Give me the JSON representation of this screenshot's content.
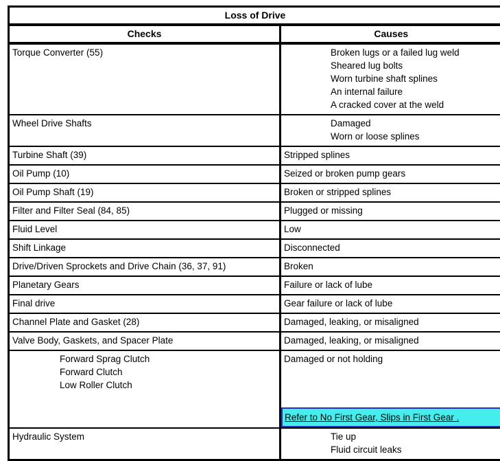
{
  "table": {
    "title": "Loss of Drive",
    "headers": [
      "Checks",
      "Causes"
    ],
    "link_colors": {
      "highlight": "#45eded",
      "border": "#2232c8"
    },
    "rows": [
      {
        "check": "Torque Converter (55)",
        "causes": [
          "Broken lugs or a failed lug weld",
          "Sheared lug bolts",
          "Worn turbine shaft splines",
          "An internal failure",
          "A cracked cover at the weld"
        ],
        "causes_indented": true
      },
      {
        "check": "Wheel Drive Shafts",
        "causes": [
          "Damaged",
          "Worn or loose splines"
        ],
        "causes_indented": true
      },
      {
        "check": "Turbine Shaft (39)",
        "causes": [
          "Stripped splines"
        ]
      },
      {
        "check": "Oil Pump (10)",
        "causes": [
          "Seized or broken pump gears"
        ]
      },
      {
        "check": "Oil Pump Shaft (19)",
        "causes": [
          "Broken or stripped splines"
        ]
      },
      {
        "check": "Filter and Filter Seal (84, 85)",
        "causes": [
          "Plugged or missing"
        ]
      },
      {
        "check": "Fluid Level",
        "causes": [
          "Low"
        ]
      },
      {
        "check": "Shift Linkage",
        "causes": [
          "Disconnected"
        ]
      },
      {
        "check": "Drive/Driven Sprockets and Drive Chain (36, 37, 91)",
        "causes": [
          "Broken"
        ]
      },
      {
        "check": "Planetary Gears",
        "causes": [
          "Failure or lack of lube"
        ]
      },
      {
        "check": "Final drive",
        "causes": [
          "Gear failure or lack of lube"
        ]
      },
      {
        "check": "Channel Plate and Gasket (28)",
        "causes": [
          "Damaged, leaking, or misaligned"
        ]
      },
      {
        "check": "Valve Body, Gaskets, and Spacer Plate",
        "causes": [
          "Damaged, leaking, or misaligned"
        ]
      },
      {
        "checks_list": [
          "Forward Sprag Clutch",
          "Forward Clutch",
          "Low Roller Clutch"
        ],
        "checks_indented": true,
        "causes": [
          "Damaged or not holding"
        ],
        "link": "Refer to No First Gear, Slips in First Gear ."
      },
      {
        "check": "Hydraulic System",
        "causes": [
          "Tie up",
          "Fluid circuit leaks"
        ],
        "causes_indented": true
      }
    ]
  }
}
